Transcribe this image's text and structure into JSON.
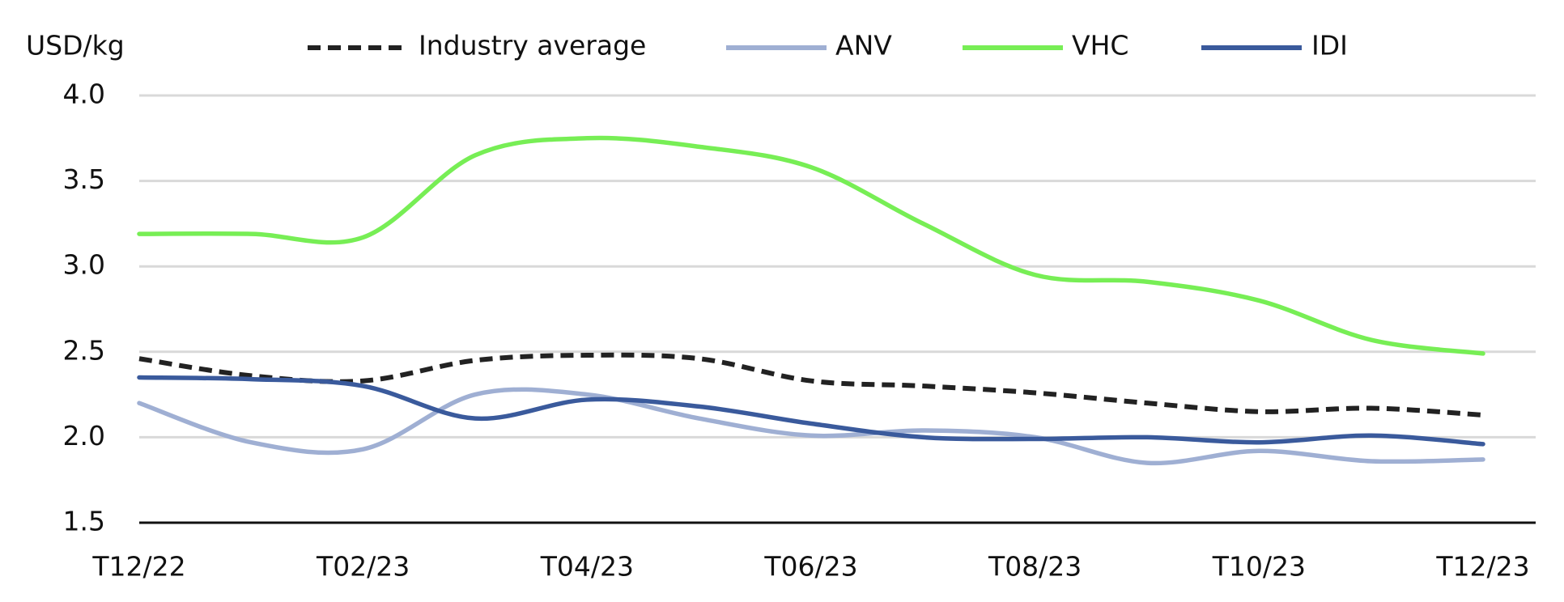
{
  "chart_data": {
    "type": "line",
    "y_axis_label": "USD/kg",
    "categories": [
      "T12/22",
      null,
      "T02/23",
      null,
      "T04/23",
      null,
      "T06/23",
      null,
      "T08/23",
      null,
      "T10/23",
      null,
      "T12/23"
    ],
    "series": [
      {
        "name": "Industry average",
        "color": "#222222",
        "dashed": true,
        "values": [
          2.46,
          2.36,
          2.33,
          2.45,
          2.48,
          2.46,
          2.33,
          2.3,
          2.26,
          2.2,
          2.15,
          2.17,
          2.13
        ]
      },
      {
        "name": "ANV",
        "color": "#9fafd3",
        "values": [
          2.2,
          1.97,
          1.93,
          2.25,
          2.25,
          2.11,
          2.01,
          2.04,
          2.0,
          1.85,
          1.92,
          1.86,
          1.87
        ]
      },
      {
        "name": "VHC",
        "color": "#77ee55",
        "values": [
          3.19,
          3.19,
          3.17,
          3.65,
          3.75,
          3.7,
          3.58,
          3.25,
          2.95,
          2.91,
          2.8,
          2.57,
          2.49
        ]
      },
      {
        "name": "IDI",
        "color": "#3a5a9c",
        "values": [
          2.35,
          2.34,
          2.3,
          2.11,
          2.22,
          2.18,
          2.08,
          2.0,
          1.99,
          2.0,
          1.97,
          2.01,
          1.96
        ]
      }
    ],
    "ylim": [
      1.5,
      4.0
    ],
    "yticks": [
      1.5,
      {
        "value": 2,
        "label": "2.0"
      },
      2.5,
      {
        "value": 3,
        "label": "3.0"
      },
      3.5,
      {
        "value": 4,
        "label": "4.0"
      }
    ],
    "grid": true,
    "legend": "top"
  }
}
